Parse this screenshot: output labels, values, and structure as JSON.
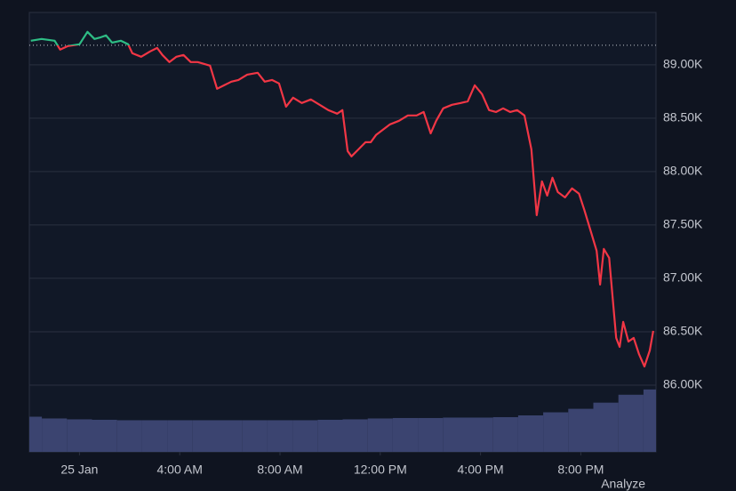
{
  "chart_data": {
    "type": "line",
    "x": [
      -1.94,
      -1.51,
      -0.99,
      -0.77,
      -0.46,
      0,
      0.32,
      0.6,
      0.85,
      1.06,
      1.3,
      1.65,
      1.94,
      2.11,
      2.46,
      2.82,
      3.1,
      3.31,
      3.59,
      3.87,
      4.15,
      4.44,
      4.72,
      5.21,
      5.49,
      5.77,
      6.06,
      6.34,
      6.69,
      7.11,
      7.39,
      7.68,
      7.96,
      8.24,
      8.52,
      8.87,
      9.23,
      9.58,
      9.93,
      10.28,
      10.49,
      10.7,
      10.85,
      11.13,
      11.41,
      11.62,
      11.83,
      12.11,
      12.39,
      12.75,
      13.1,
      13.45,
      13.73,
      14.01,
      14.23,
      14.51,
      14.86,
      15.21,
      15.49,
      15.77,
      16.06,
      16.34,
      16.62,
      16.9,
      17.18,
      17.46,
      17.75,
      18.03,
      18.24,
      18.45,
      18.66,
      18.87,
      19.08,
      19.37,
      19.65,
      19.93,
      20.14,
      20.42,
      20.63,
      20.77,
      20.92,
      21.13,
      21.41,
      21.55,
      21.69,
      21.9,
      22.11,
      22.32,
      22.54,
      22.75,
      22.89
    ],
    "values": [
      89225,
      89242,
      89225,
      89142,
      89175,
      89192,
      89308,
      89242,
      89258,
      89275,
      89208,
      89225,
      89192,
      89108,
      89075,
      89125,
      89158,
      89092,
      89025,
      89075,
      89092,
      89025,
      89025,
      88992,
      88775,
      88808,
      88842,
      88858,
      88908,
      88925,
      88842,
      88858,
      88825,
      88608,
      88692,
      88642,
      88675,
      88625,
      88575,
      88542,
      88575,
      88192,
      88142,
      88208,
      88275,
      88275,
      88342,
      88392,
      88442,
      88475,
      88525,
      88525,
      88558,
      88358,
      88475,
      88592,
      88625,
      88642,
      88658,
      88808,
      88725,
      88575,
      88558,
      88592,
      88558,
      88575,
      88525,
      88208,
      87592,
      87908,
      87775,
      87942,
      87808,
      87758,
      87842,
      87792,
      87642,
      87425,
      87258,
      86942,
      87275,
      87192,
      86442,
      86358,
      86592,
      86408,
      86442,
      86292,
      86175,
      86325,
      86508
    ],
    "baseline": 89183,
    "color_up": "#2ebd85",
    "color_down": "#f23645",
    "xlim": [
      -2,
      23
    ],
    "xticks": [
      {
        "value": 0,
        "label": "25 Jan"
      },
      {
        "value": 4,
        "label": "4:00 AM"
      },
      {
        "value": 8,
        "label": "8:00 AM"
      },
      {
        "value": 12,
        "label": "12:00 PM"
      },
      {
        "value": 16,
        "label": "4:00 PM"
      },
      {
        "value": 20,
        "label": "8:00 PM"
      }
    ],
    "ylim": [
      85375,
      89490
    ],
    "yticks": [
      {
        "value": 86000,
        "label": "86.00K"
      },
      {
        "value": 86500,
        "label": "86.50K"
      },
      {
        "value": 87000,
        "label": "87.00K"
      },
      {
        "value": 87500,
        "label": "87.50K"
      },
      {
        "value": 88000,
        "label": "88.00K"
      },
      {
        "value": 88500,
        "label": "88.50K"
      },
      {
        "value": 89000,
        "label": "89.00K"
      }
    ],
    "grid": true,
    "volume": {
      "axis": "y2",
      "color": "#3b4470",
      "x": [
        -2,
        -1,
        0,
        1,
        2,
        3,
        4,
        5,
        6,
        7,
        8,
        9,
        10,
        11,
        12,
        13,
        14,
        15,
        16,
        17,
        18,
        19,
        20,
        21,
        22,
        23
      ],
      "values": [
        8,
        7.6,
        7.4,
        7.3,
        7.2,
        7.2,
        7.2,
        7.2,
        7.2,
        7.2,
        7.2,
        7.2,
        7.3,
        7.4,
        7.6,
        7.7,
        7.7,
        7.8,
        7.8,
        7.9,
        8.3,
        9,
        9.8,
        11.2,
        13,
        14.2
      ]
    },
    "y2lim": [
      0,
      100
    ],
    "footer_label": "Analyze"
  }
}
